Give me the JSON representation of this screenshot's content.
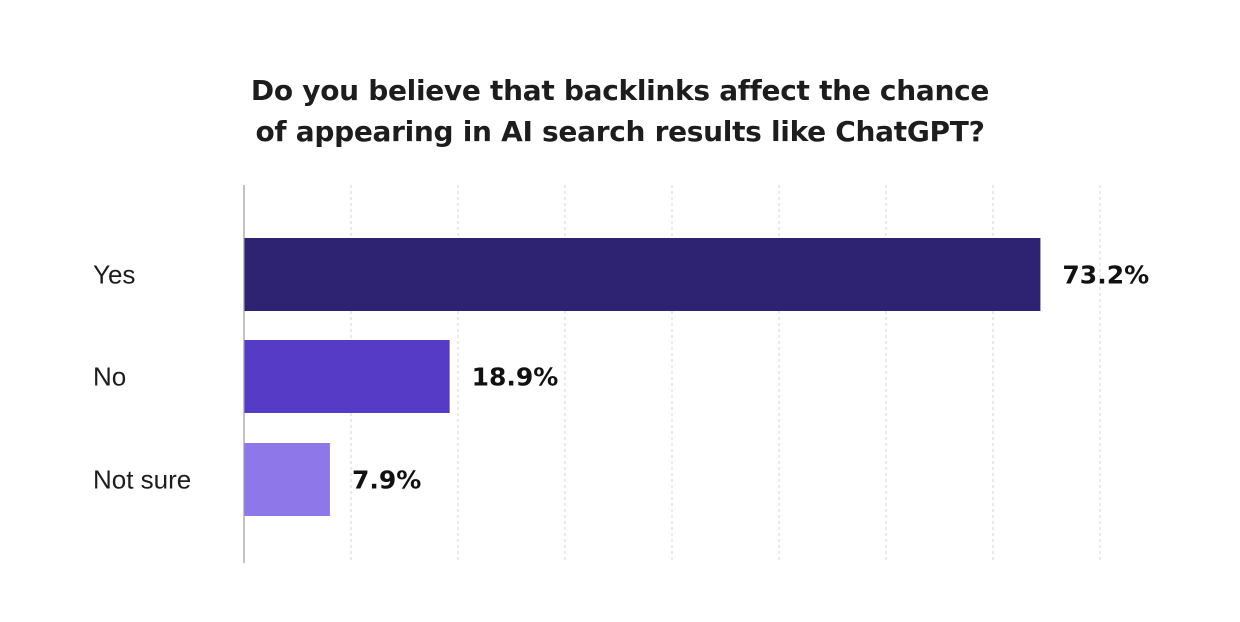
{
  "chart_data": {
    "type": "bar",
    "orientation": "horizontal",
    "title_lines": [
      "Do you believe that backlinks affect the chance",
      "of appearing in AI search results like ChatGPT?"
    ],
    "categories": [
      "Yes",
      "No",
      "Not sure"
    ],
    "values": [
      73.2,
      18.9,
      7.9
    ],
    "value_labels": [
      "73.2%",
      "18.9%",
      "7.9%"
    ],
    "colors": [
      "#2e2273",
      "#553bc6",
      "#8e78e9"
    ],
    "xlim": [
      0,
      80
    ],
    "grid": "vertical dashed",
    "legend": "none"
  }
}
